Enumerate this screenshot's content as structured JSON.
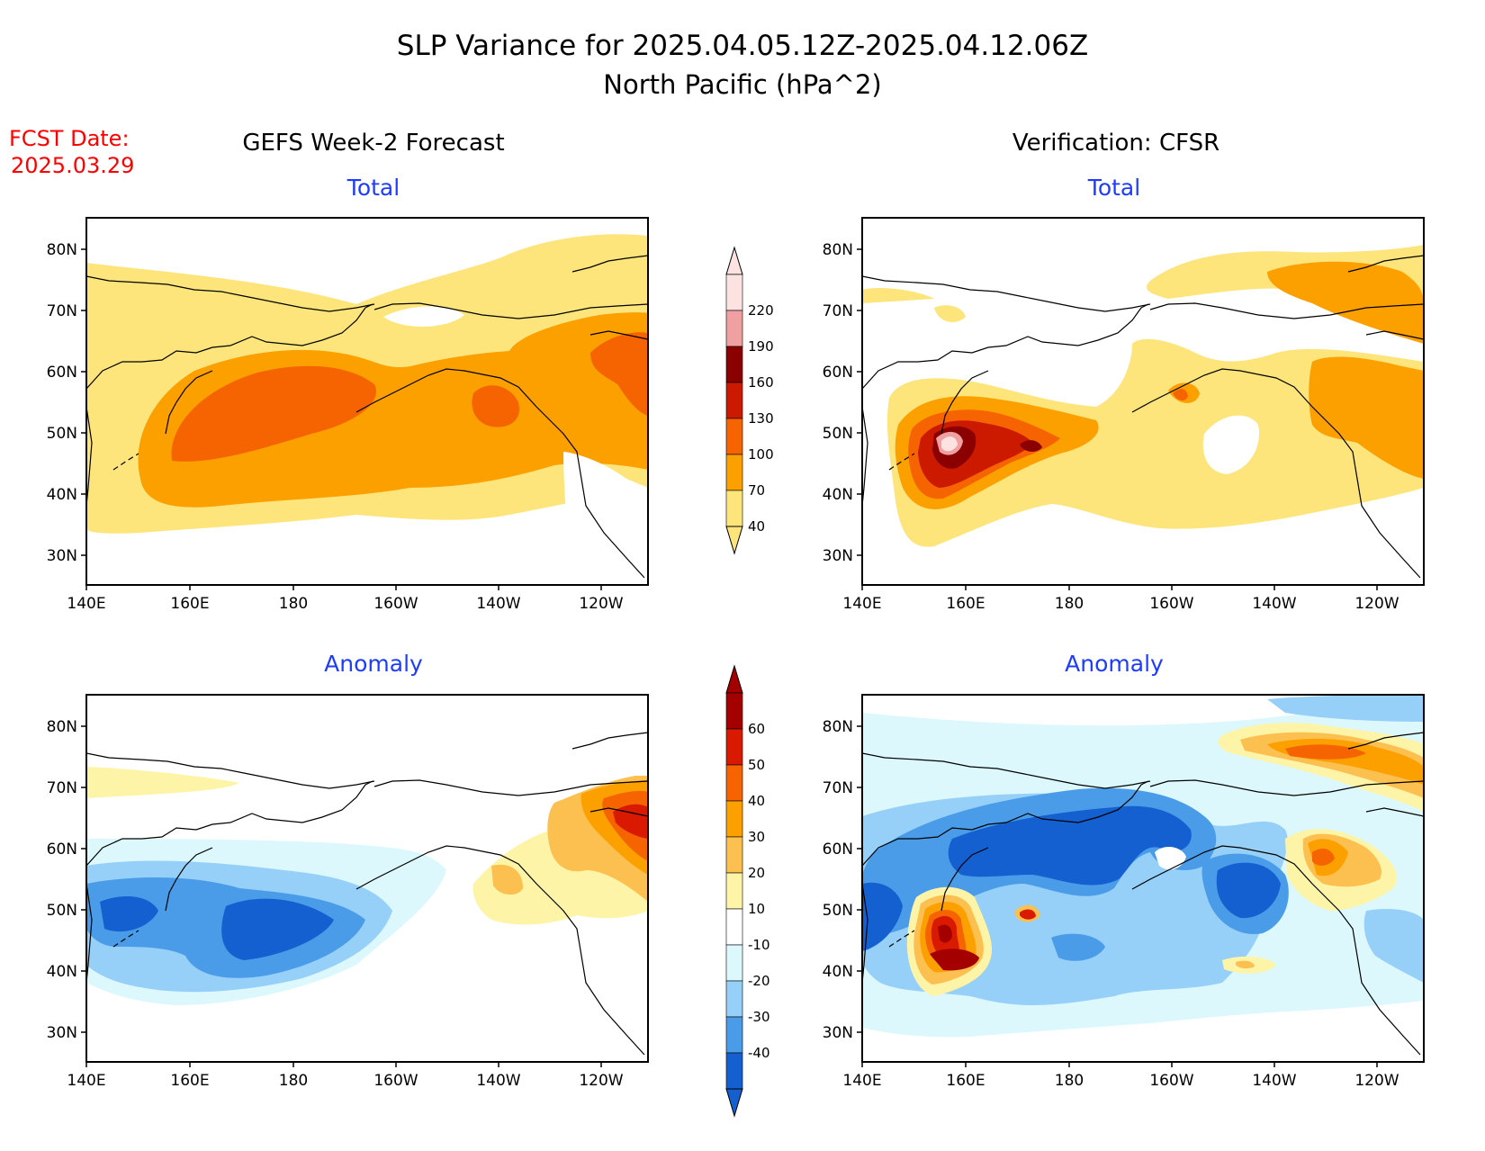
{
  "title": {
    "line1": "SLP Variance for 2025.04.05.12Z-2025.04.12.06Z",
    "line2": "North Pacific (hPa^2)"
  },
  "fcst": {
    "label": "FCST Date:",
    "date": "2025.03.29"
  },
  "columns": {
    "left": "GEFS Week-2 Forecast",
    "right": "Verification: CFSR"
  },
  "panels": [
    {
      "id": "fcst-total",
      "subtitle": "Total"
    },
    {
      "id": "verif-total",
      "subtitle": "Total"
    },
    {
      "id": "fcst-anomaly",
      "subtitle": "Anomaly"
    },
    {
      "id": "verif-anomaly",
      "subtitle": "Anomaly"
    }
  ],
  "axes": {
    "lon_labels": [
      "140E",
      "160E",
      "180",
      "160W",
      "140W",
      "120W"
    ],
    "lat_labels": [
      "80N",
      "70N",
      "60N",
      "50N",
      "40N",
      "30N"
    ]
  },
  "colorbars": {
    "total": {
      "levels": [
        "220",
        "190",
        "160",
        "130",
        "100",
        "70",
        "40"
      ],
      "colors": [
        "#fde2e2",
        "#f0a0a0",
        "#8b0000",
        "#cc1a00",
        "#f56400",
        "#fca000",
        "#fde57c"
      ]
    },
    "anomaly": {
      "levels": [
        "60",
        "50",
        "40",
        "30",
        "20",
        "10",
        "-10",
        "-20",
        "-30",
        "-40"
      ],
      "colors": [
        "#a50000",
        "#d91a00",
        "#f56400",
        "#fca000",
        "#fcc050",
        "#fef4a8",
        "#ffffff",
        "#dcf8fc",
        "#96d0f8",
        "#4a9ce8",
        "#1560d0"
      ]
    }
  },
  "colors": {
    "title_text": "#000000",
    "fcst_date": "#ff0000",
    "subtitle": "#1e3cff"
  }
}
